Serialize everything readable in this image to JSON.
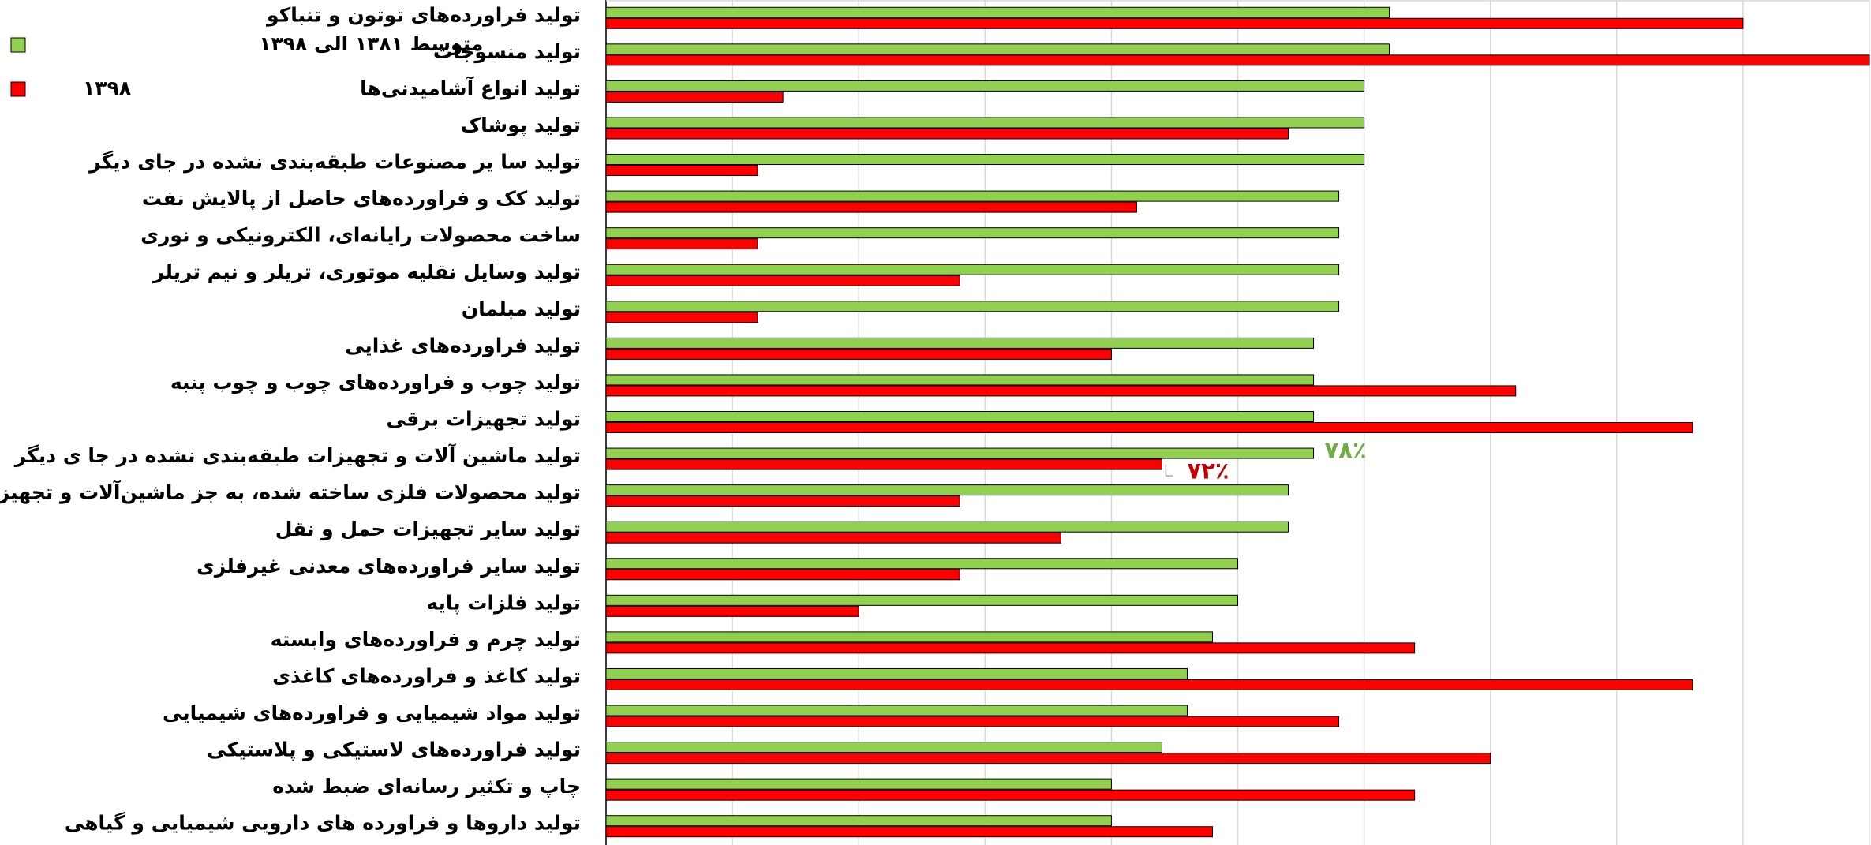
{
  "chart_data": {
    "type": "bar",
    "orientation": "horizontal",
    "categories": [
      "تولید فراورده‌های توتون و تنباکو",
      "تولید منسوجات",
      "تولید انواع آشامیدنی‌ها",
      "تولید پوشاک",
      "تولید سا یر مصنوعات طبقه‌بندی نشده در جای دیگر",
      "تولید کک و فراورده‌های حاصل از پالایش نفت",
      "ساخت محصولات رایانه‌ای، الکترونیکی و نوری",
      "تولید وسایل نقلیه موتوری، تریلر و نیم تریلر",
      "تولید مبلمان",
      "تولید فراورده‌های غذایی",
      "تولید چوب و فراورده‌های چوب و چوب پنبه",
      "تولید تجهیزات برقی",
      "تولید ماشین آلات و تجهیزات طبقه‌بندی نشده در جا ی دیگر",
      "تولید محصولات فلزی ساخته شده، به جز ماشین‌آلات و تجهیزات",
      "تولید سایر تجهیزات حمل و نقل",
      "تولید سایر فراورده‌های معدنی غیرفلزی",
      "تولید فلزات پایه",
      "تولید چرم و فراورده‌های وابسته",
      "تولید کاغذ و فراورده‌های کاغذی",
      "تولید مواد شیمیایی و فراورده‌های شیمیایی",
      "تولید فراورده‌های لاستیکی و پلاستیکی",
      "چاپ و تکثیر رسانه‌ای ضبط شده",
      "تولید داروها و فراورده های دارویی شیمیایی و گیاهی"
    ],
    "series": [
      {
        "name": "متوسط ۱۳۸۱ الی ۱۳۹۸",
        "color": "#92d050",
        "label_color": "#70ad47",
        "values": [
          81,
          81,
          80,
          80,
          80,
          79,
          79,
          79,
          79,
          78,
          78,
          78,
          78,
          77,
          77,
          75,
          75,
          74,
          73,
          73,
          72,
          70,
          70
        ],
        "value_labels": [
          null,
          null,
          null,
          null,
          null,
          null,
          null,
          null,
          null,
          null,
          null,
          null,
          "۷۸٪",
          null,
          null,
          null,
          null,
          null,
          null,
          null,
          null,
          null,
          null
        ]
      },
      {
        "name": "۱۳۹۸",
        "color": "#ff0000",
        "label_color": "#c00000",
        "values": [
          95,
          100,
          57,
          77,
          56,
          71,
          56,
          64,
          56,
          70,
          86,
          93,
          72,
          64,
          68,
          64,
          60,
          82,
          93,
          79,
          85,
          82,
          74
        ],
        "value_labels": [
          null,
          null,
          null,
          null,
          null,
          null,
          null,
          null,
          null,
          null,
          null,
          null,
          "۷۲٪",
          null,
          null,
          null,
          null,
          null,
          null,
          null,
          null,
          null,
          null
        ]
      }
    ],
    "xlim": [
      50,
      100
    ],
    "xticks": [
      50,
      55,
      60,
      65,
      70,
      75,
      80,
      85,
      90,
      95,
      100
    ],
    "grid": true,
    "legend": "top-left"
  }
}
